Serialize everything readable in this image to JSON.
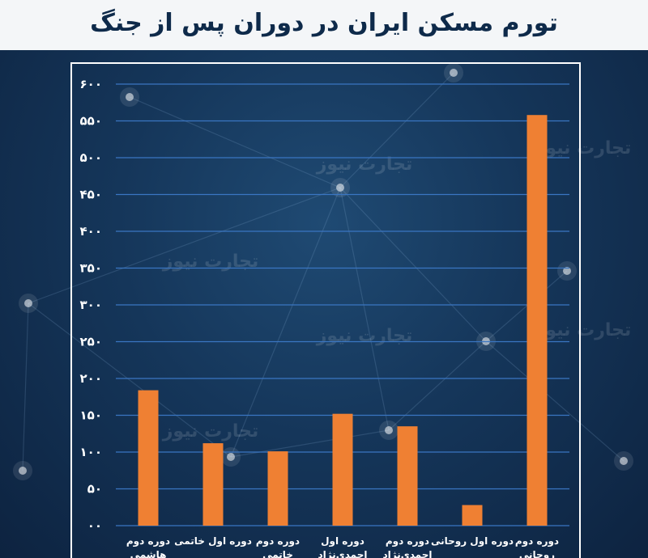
{
  "title": "تورم مسکن ایران در دوران پس از جنگ",
  "watermark_text": "تجارت نیوز",
  "colors": {
    "bar": "#ef8033",
    "grid": "#3a76c2",
    "text": "#ffffff",
    "title_bg": "#f4f6f8",
    "title_text": "#0e2a4a"
  },
  "chart_data": {
    "type": "bar",
    "title": "تورم مسکن ایران در دوران پس از جنگ",
    "xlabel": "",
    "ylabel": "",
    "ylim": [
      0,
      600
    ],
    "yticks": [
      "۰۰",
      "۵۰",
      "۱۰۰",
      "۱۵۰",
      "۲۰۰",
      "۲۵۰",
      "۳۰۰",
      "۳۵۰",
      "۴۰۰",
      "۴۵۰",
      "۵۰۰",
      "۵۵۰",
      "۶۰۰"
    ],
    "ytick_values": [
      0,
      50,
      100,
      150,
      200,
      250,
      300,
      350,
      400,
      450,
      500,
      550,
      600
    ],
    "categories": [
      [
        "دوره دوم",
        "هاشمی"
      ],
      [
        "دوره اول خاتمی"
      ],
      [
        "دوره دوم",
        "خاتمی"
      ],
      [
        "دوره اول",
        "احمدی‌نژاد"
      ],
      [
        "دوره دوم",
        "احمدی‌نژاد"
      ],
      [
        "دوره اول روحانی"
      ],
      [
        "دوره دوم",
        "روحانی"
      ]
    ],
    "values": [
      184,
      112,
      101,
      152,
      135,
      28,
      558
    ],
    "grid": true
  }
}
